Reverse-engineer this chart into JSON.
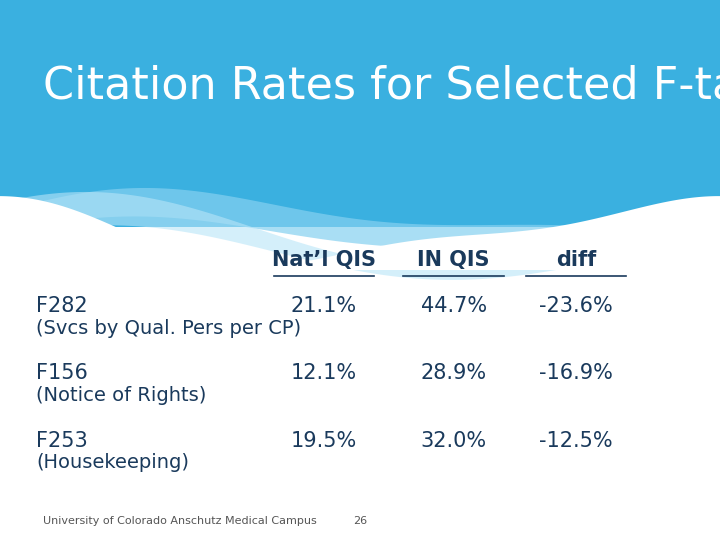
{
  "title": "Citation Rates for Selected F-tags",
  "title_color": "#FFFFFF",
  "title_fontsize": 32,
  "header_row": [
    "Nat’l QIS",
    "IN QIS",
    "diff"
  ],
  "rows": [
    {
      "label_line1": "F282",
      "label_line2": "(Svcs by Qual. Pers per CP)",
      "natl_qis": "21.1%",
      "in_qis": "44.7%",
      "diff": "-23.6%"
    },
    {
      "label_line1": "F156",
      "label_line2": "(Notice of Rights)",
      "natl_qis": "12.1%",
      "in_qis": "28.9%",
      "diff": "-16.9%"
    },
    {
      "label_line1": "F253",
      "label_line2": "(Housekeeping)",
      "natl_qis": "19.5%",
      "in_qis": "32.0%",
      "diff": "-12.5%"
    }
  ],
  "data_color": "#1a3a5c",
  "header_color": "#1a3a5c",
  "bg_color_top": "#3ab0e0",
  "bg_color_bottom": "#FFFFFF",
  "wave_color1": "#85d0f0",
  "wave_color2": "#b8e5f8",
  "footer_text": "University of Colorado Anschutz Medical Campus",
  "footer_page": "26",
  "footer_fontsize": 8,
  "data_fontsize": 15,
  "header_fontsize": 15
}
